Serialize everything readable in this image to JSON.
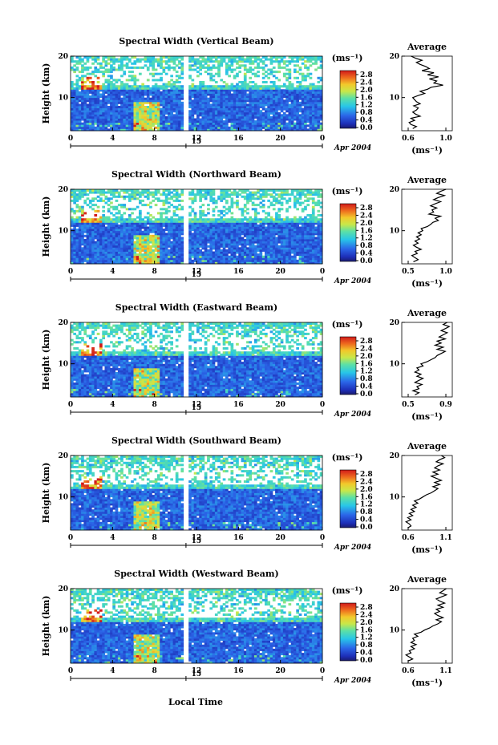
{
  "figure": {
    "x_label": "Local Time",
    "date_label": "Apr 2004",
    "colorbar_unit": "(ms⁻¹)",
    "colorbar_ticks": [
      "0.0",
      "0.4",
      "0.8",
      "1.2",
      "1.6",
      "2.0",
      "2.4",
      "2.8"
    ],
    "height_label": "Height (km)",
    "profile_unit": "(ms⁻¹)",
    "profile_title": "Average",
    "colors": {
      "low": "#0a1f8c",
      "mid": "#2bd4d4",
      "high": "#d11a1a",
      "gap": "#ffffff"
    }
  },
  "chart_data": [
    {
      "type": "heatmap",
      "title": "Spectral Width (Vertical Beam)",
      "x_ticks": [
        "0",
        "4",
        "8",
        "12",
        "16",
        "20",
        "0"
      ],
      "day_marker": "15",
      "y_ticks": [
        "20",
        "10"
      ],
      "ylim_km": [
        2,
        20
      ],
      "profile": {
        "title": "Average",
        "x_ticks": [
          "0.6",
          "1.0"
        ],
        "xlim": [
          0.5,
          1.05
        ],
        "y_ticks": [
          "20",
          "10"
        ],
        "heights": [
          2.5,
          3,
          3.5,
          4,
          4.5,
          5,
          5.5,
          6,
          6.5,
          7,
          7.5,
          8,
          8.5,
          9,
          9.5,
          10,
          10.5,
          11,
          11.5,
          12,
          12.5,
          13,
          13.5,
          14,
          14.5,
          15,
          15.5,
          16,
          16.5,
          17,
          17.5,
          18,
          18.5,
          19,
          19.5,
          20
        ],
        "values": [
          0.62,
          0.66,
          0.6,
          0.58,
          0.64,
          0.6,
          0.7,
          0.65,
          0.62,
          0.66,
          0.68,
          0.63,
          0.7,
          0.66,
          0.64,
          0.62,
          0.68,
          0.75,
          0.7,
          0.78,
          0.82,
          0.95,
          0.85,
          0.88,
          0.8,
          0.9,
          0.78,
          0.85,
          0.72,
          0.8,
          0.76,
          0.7,
          0.66,
          0.72,
          0.65,
          0.6
        ]
      }
    },
    {
      "type": "heatmap",
      "title": "Spectral Width (Northward Beam)",
      "x_ticks": [
        "0",
        "4",
        "8",
        "12",
        "16",
        "20",
        "0"
      ],
      "day_marker": "15",
      "y_ticks": [
        "20",
        "10"
      ],
      "ylim_km": [
        2,
        20
      ],
      "profile": {
        "title": "Average",
        "x_ticks": [
          "0.5",
          "1.0"
        ],
        "xlim": [
          0.45,
          1.1
        ],
        "y_ticks": [
          "20",
          "10"
        ],
        "heights": [
          2.5,
          3,
          3.5,
          4,
          4.5,
          5,
          5.5,
          6,
          6.5,
          7,
          7.5,
          8,
          8.5,
          9,
          9.5,
          10,
          10.5,
          11,
          11.5,
          12,
          12.5,
          13,
          13.5,
          14,
          14.5,
          15,
          15.5,
          16,
          16.5,
          17,
          17.5,
          18,
          18.5,
          19,
          19.5,
          20
        ],
        "values": [
          0.6,
          0.66,
          0.62,
          0.58,
          0.65,
          0.62,
          0.7,
          0.64,
          0.6,
          0.66,
          0.62,
          0.68,
          0.64,
          0.7,
          0.66,
          0.72,
          0.7,
          0.78,
          0.82,
          0.85,
          0.92,
          0.88,
          0.95,
          0.8,
          0.86,
          0.84,
          0.9,
          0.82,
          0.88,
          0.95,
          0.86,
          0.92,
          1.0,
          0.9,
          0.95,
          1.02
        ]
      }
    },
    {
      "type": "heatmap",
      "title": "Spectral Width (Eastward Beam)",
      "x_ticks": [
        "0",
        "4",
        "8",
        "12",
        "16",
        "20",
        "0"
      ],
      "day_marker": "15",
      "y_ticks": [
        "20",
        "10"
      ],
      "ylim_km": [
        2,
        20
      ],
      "profile": {
        "title": "Average",
        "x_ticks": [
          "0.5",
          "0.9"
        ],
        "xlim": [
          0.45,
          0.95
        ],
        "y_ticks": [
          "20",
          "10"
        ],
        "heights": [
          2.5,
          3,
          3.5,
          4,
          4.5,
          5,
          5.5,
          6,
          6.5,
          7,
          7.5,
          8,
          8.5,
          9,
          9.5,
          10,
          10.5,
          11,
          11.5,
          12,
          12.5,
          13,
          13.5,
          14,
          14.5,
          15,
          15.5,
          16,
          16.5,
          17,
          17.5,
          18,
          18.5,
          19,
          19.5,
          20
        ],
        "values": [
          0.58,
          0.62,
          0.56,
          0.62,
          0.6,
          0.65,
          0.58,
          0.62,
          0.66,
          0.6,
          0.64,
          0.58,
          0.62,
          0.6,
          0.66,
          0.64,
          0.7,
          0.74,
          0.78,
          0.8,
          0.84,
          0.88,
          0.8,
          0.86,
          0.78,
          0.84,
          0.8,
          0.88,
          0.82,
          0.86,
          0.9,
          0.84,
          0.88,
          0.92,
          0.86,
          0.9
        ]
      }
    },
    {
      "type": "heatmap",
      "title": "Spectral Width (Southward Beam)",
      "x_ticks": [
        "0",
        "4",
        "8",
        "12",
        "16",
        "20",
        "0"
      ],
      "day_marker": "15",
      "y_ticks": [
        "20",
        "10"
      ],
      "ylim_km": [
        2,
        20
      ],
      "profile": {
        "title": "Average",
        "x_ticks": [
          "0.6",
          "1.1"
        ],
        "xlim": [
          0.55,
          1.15
        ],
        "y_ticks": [
          "20",
          "10"
        ],
        "heights": [
          2.5,
          3,
          3.5,
          4,
          4.5,
          5,
          5.5,
          6,
          6.5,
          7,
          7.5,
          8,
          8.5,
          9,
          9.5,
          10,
          10.5,
          11,
          11.5,
          12,
          12.5,
          13,
          13.5,
          14,
          14.5,
          15,
          15.5,
          16,
          16.5,
          17,
          17.5,
          18,
          18.5,
          19,
          19.5,
          20
        ],
        "values": [
          0.62,
          0.66,
          0.64,
          0.6,
          0.66,
          0.62,
          0.68,
          0.64,
          0.7,
          0.66,
          0.72,
          0.68,
          0.74,
          0.7,
          0.76,
          0.8,
          0.84,
          0.9,
          0.94,
          0.98,
          0.92,
          1.0,
          0.94,
          1.02,
          0.96,
          0.9,
          0.98,
          0.92,
          1.0,
          0.94,
          0.98,
          1.04,
          0.96,
          1.0,
          1.06,
          1.02
        ]
      }
    },
    {
      "type": "heatmap",
      "title": "Spectral Width (Westward Beam)",
      "x_ticks": [
        "0",
        "4",
        "8",
        "12",
        "16",
        "20",
        "0"
      ],
      "day_marker": "15",
      "y_ticks": [
        "20",
        "10"
      ],
      "ylim_km": [
        2,
        20
      ],
      "profile": {
        "title": "Average",
        "x_ticks": [
          "0.6",
          "1.1"
        ],
        "xlim": [
          0.55,
          1.15
        ],
        "y_ticks": [
          "20",
          "10"
        ],
        "heights": [
          2.5,
          3,
          3.5,
          4,
          4.5,
          5,
          5.5,
          6,
          6.5,
          7,
          7.5,
          8,
          8.5,
          9,
          9.5,
          10,
          10.5,
          11,
          11.5,
          12,
          12.5,
          13,
          13.5,
          14,
          14.5,
          15,
          15.5,
          16,
          16.5,
          17,
          17.5,
          18,
          18.5,
          19,
          19.5,
          20
        ],
        "values": [
          0.62,
          0.68,
          0.64,
          0.6,
          0.66,
          0.64,
          0.7,
          0.66,
          0.72,
          0.66,
          0.7,
          0.68,
          0.74,
          0.7,
          0.78,
          0.82,
          0.88,
          0.92,
          0.98,
          1.02,
          0.96,
          1.04,
          0.98,
          0.94,
          1.0,
          0.96,
          1.04,
          0.98,
          1.06,
          1.0,
          0.96,
          1.02,
          1.08,
          1.0,
          1.04,
          1.08
        ]
      }
    }
  ]
}
